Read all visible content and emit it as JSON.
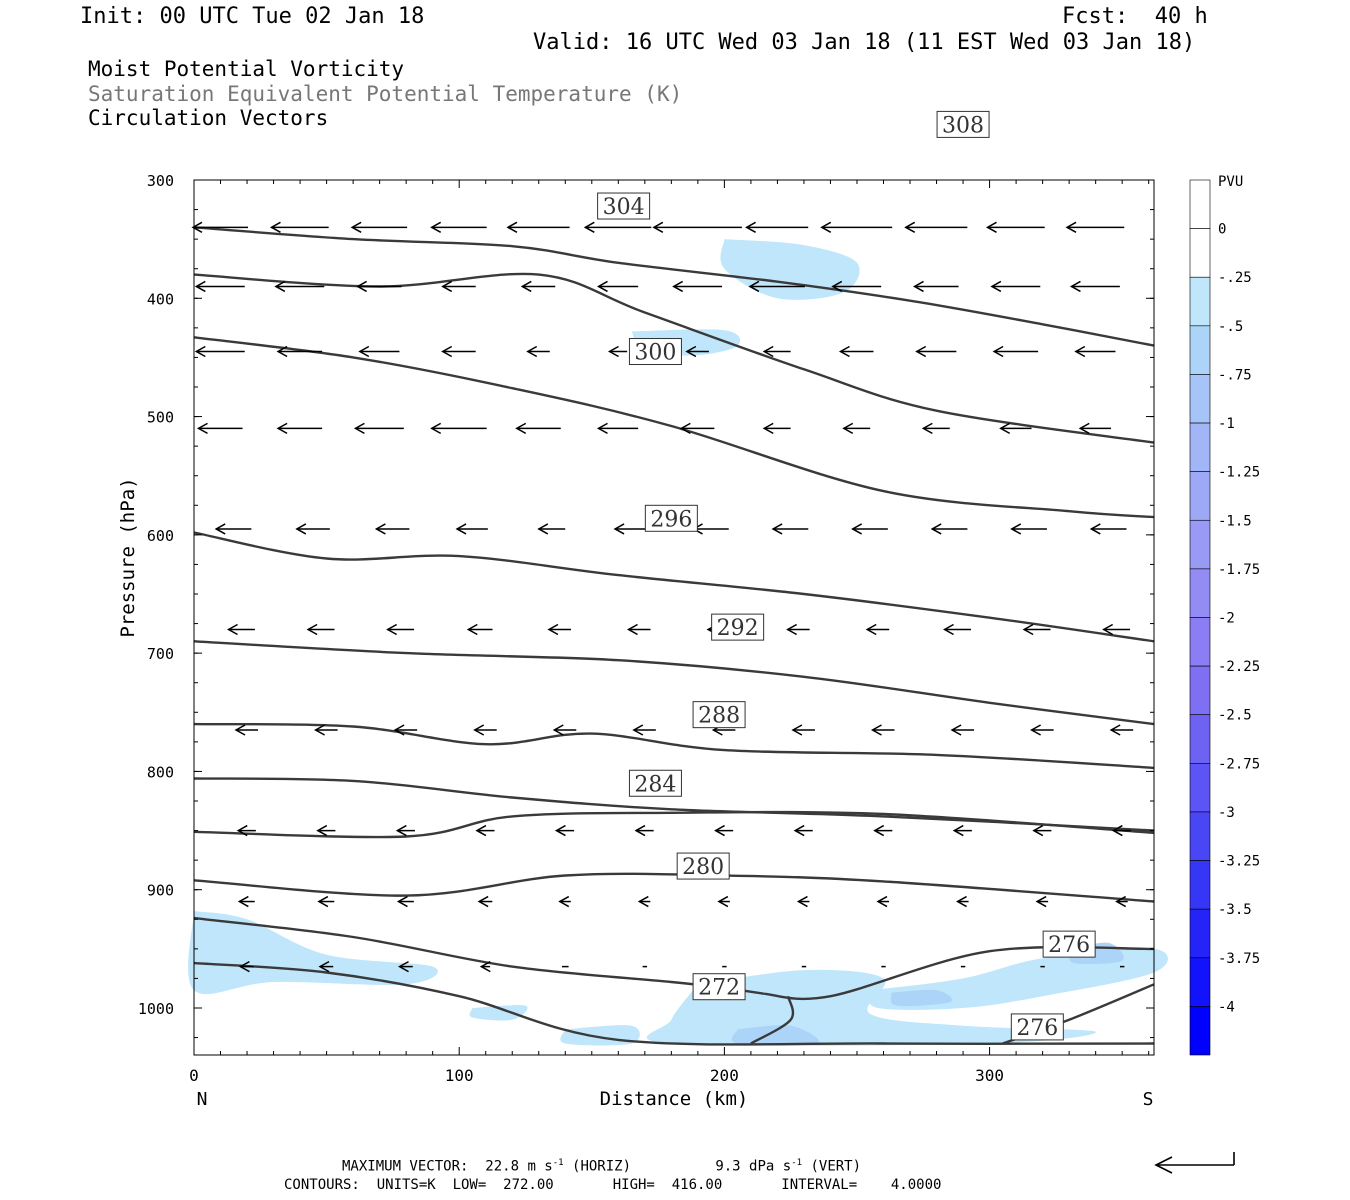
{
  "header": {
    "init": "Init: 00 UTC Tue 02 Jan 18",
    "fcst": "Fcst:  40 h",
    "valid": "Valid: 16 UTC Wed 03 Jan 18 (11 EST Wed 03 Jan 18)"
  },
  "titles": {
    "line1": "Moist Potential Vorticity",
    "line2": "Saturation Equivalent Potential Temperature (K)",
    "line3": "Circulation Vectors"
  },
  "footer": {
    "max_vector_label": "MAXIMUM VECTOR:",
    "max_horiz": "22.8 m s",
    "max_horiz_unit": "(HORIZ)",
    "max_vert": "9.3 dPa s",
    "max_vert_unit": "(VERT)",
    "exp": "-1",
    "contours_line": "CONTOURS:  UNITS=K  LOW=  272.00       HIGH=  416.00       INTERVAL=    4.0000"
  },
  "chart_data": {
    "type": "contour",
    "xlabel": "Distance (km)",
    "ylabel": "Pressure (hPa)",
    "xlim": [
      0,
      362
    ],
    "ylim": [
      1030,
      300
    ],
    "x_ticks": [
      "0",
      "100",
      "200",
      "300"
    ],
    "x_end_labels": {
      "left": "N",
      "right": "S"
    },
    "y_ticks": [
      "300",
      "400",
      "500",
      "600",
      "700",
      "800",
      "900",
      "1000"
    ],
    "colorbar": {
      "unit": "PVU",
      "labels": [
        "0",
        "-.25",
        "-.5",
        "-.75",
        "-1",
        "-1.25",
        "-1.5",
        "-1.75",
        "-2",
        "-2.25",
        "-2.5",
        "-2.75",
        "-3",
        "-3.25",
        "-3.5",
        "-3.75",
        "-4"
      ],
      "colors": [
        "#ffffff",
        "#ffffff",
        "#bfe6fa",
        "#acd4f8",
        "#a7c4f8",
        "#a2b6f7",
        "#9da8f6",
        "#989af5",
        "#928cf4",
        "#8b7ef4",
        "#7f70f3",
        "#6e62f3",
        "#5c54f4",
        "#4946f5",
        "#3636f7",
        "#2424f9",
        "#1212fb",
        "#0000ff"
      ]
    },
    "theta_contours": [
      {
        "label": "272",
        "label_at": [
          198,
          982
        ],
        "points": [
          [
            0,
            962
          ],
          [
            50,
            970
          ],
          [
            100,
            990
          ],
          [
            160,
            1027
          ],
          [
            260,
            1030
          ],
          [
            362,
            1030
          ]
        ]
      },
      {
        "label": "276",
        "label_at": [
          330,
          946
        ],
        "points": [
          [
            0,
            924
          ],
          [
            60,
            940
          ],
          [
            120,
            965
          ],
          [
            180,
            978
          ],
          [
            200,
            983
          ],
          [
            215,
            988
          ]
        ]
      },
      {
        "label": "276",
        "label_at": [
          330,
          946
        ],
        "points": [
          [
            215,
            988
          ],
          [
            240,
            990
          ],
          [
            300,
            952
          ],
          [
            362,
            950
          ]
        ]
      },
      {
        "label": "276",
        "label_at": [
          318,
          1016
        ],
        "points": [
          [
            305,
            1030
          ],
          [
            330,
            1010
          ],
          [
            362,
            980
          ]
        ]
      },
      {
        "label": "",
        "label_at": null,
        "points": [
          [
            210,
            1030
          ],
          [
            225,
            1010
          ],
          [
            224,
            990
          ]
        ]
      },
      {
        "label": "280",
        "label_at": [
          192,
          880
        ],
        "points": [
          [
            0,
            892
          ],
          [
            80,
            905
          ],
          [
            140,
            888
          ],
          [
            200,
            888
          ],
          [
            260,
            893
          ],
          [
            362,
            910
          ]
        ]
      },
      {
        "label": "284",
        "label_at": [
          174,
          810
        ],
        "points": [
          [
            0,
            851
          ],
          [
            80,
            855
          ],
          [
            120,
            838
          ],
          [
            180,
            835
          ],
          [
            260,
            836
          ],
          [
            362,
            852
          ]
        ]
      },
      {
        "label": "",
        "label_at": null,
        "points": [
          [
            0,
            806
          ],
          [
            60,
            808
          ],
          [
            120,
            822
          ],
          [
            180,
            832
          ],
          [
            260,
            838
          ],
          [
            362,
            850
          ]
        ]
      },
      {
        "label": "288",
        "label_at": [
          198,
          752
        ],
        "points": [
          [
            0,
            760
          ],
          [
            60,
            762
          ],
          [
            110,
            777
          ],
          [
            150,
            768
          ],
          [
            200,
            782
          ],
          [
            280,
            786
          ],
          [
            362,
            797
          ]
        ]
      },
      {
        "label": "292",
        "label_at": [
          205,
          678
        ],
        "points": [
          [
            0,
            690
          ],
          [
            80,
            700
          ],
          [
            160,
            706
          ],
          [
            230,
            720
          ],
          [
            300,
            742
          ],
          [
            362,
            760
          ]
        ]
      },
      {
        "label": "296",
        "label_at": [
          180,
          586
        ],
        "points": [
          [
            0,
            598
          ],
          [
            50,
            620
          ],
          [
            100,
            618
          ],
          [
            160,
            634
          ],
          [
            230,
            650
          ],
          [
            300,
            670
          ],
          [
            362,
            690
          ]
        ]
      },
      {
        "label": "300",
        "label_at": [
          174,
          445
        ],
        "points": [
          [
            0,
            433
          ],
          [
            60,
            450
          ],
          [
            120,
            476
          ],
          [
            180,
            508
          ],
          [
            260,
            563
          ],
          [
            330,
            580
          ],
          [
            362,
            585
          ]
        ]
      },
      {
        "label": "304",
        "label_at": [
          162,
          322
        ],
        "points": [
          [
            0,
            380
          ],
          [
            70,
            390
          ],
          [
            130,
            380
          ],
          [
            170,
            412
          ],
          [
            230,
            460
          ],
          [
            280,
            495
          ],
          [
            362,
            522
          ]
        ]
      },
      {
        "label": "308",
        "label_at": [
          290,
          253
        ],
        "points": [
          [
            0,
            340
          ],
          [
            60,
            350
          ],
          [
            120,
            356
          ],
          [
            160,
            370
          ],
          [
            220,
            386
          ],
          [
            270,
            402
          ],
          [
            320,
            422
          ],
          [
            362,
            440
          ]
        ]
      }
    ],
    "pv_regions": [
      {
        "level": "-0.25 to -0.5",
        "points": [
          [
            200,
            350
          ],
          [
            230,
            355
          ],
          [
            250,
            370
          ],
          [
            245,
            395
          ],
          [
            220,
            400
          ],
          [
            200,
            375
          ]
        ]
      },
      {
        "level": "-0.25 to -0.5",
        "points": [
          [
            165,
            428
          ],
          [
            200,
            427
          ],
          [
            205,
            440
          ],
          [
            190,
            448
          ],
          [
            170,
            445
          ]
        ]
      },
      {
        "level": "-0.25 to -0.5",
        "points": [
          [
            0,
            918
          ],
          [
            20,
            925
          ],
          [
            50,
            955
          ],
          [
            90,
            965
          ],
          [
            80,
            980
          ],
          [
            30,
            978
          ],
          [
            0,
            985
          ]
        ]
      },
      {
        "level": "-0.25 to -0.5",
        "points": [
          [
            105,
            1000
          ],
          [
            125,
            998
          ],
          [
            120,
            1010
          ],
          [
            105,
            1008
          ]
        ]
      },
      {
        "level": "-0.25 to -0.5",
        "points": [
          [
            140,
            1018
          ],
          [
            165,
            1015
          ],
          [
            165,
            1030
          ],
          [
            140,
            1030
          ]
        ]
      },
      {
        "level": "-0.25 to -0.5",
        "points": [
          [
            190,
            980
          ],
          [
            230,
            968
          ],
          [
            260,
            975
          ],
          [
            255,
            1005
          ],
          [
            290,
            1015
          ],
          [
            340,
            1020
          ],
          [
            300,
            1030
          ],
          [
            180,
            1030
          ],
          [
            180,
            1010
          ]
        ]
      },
      {
        "level": "-0.25 to -0.5",
        "points": [
          [
            255,
            985
          ],
          [
            290,
            975
          ],
          [
            320,
            958
          ],
          [
            362,
            950
          ],
          [
            362,
            970
          ],
          [
            320,
            990
          ],
          [
            290,
            1000
          ],
          [
            258,
            1000
          ]
        ]
      },
      {
        "level": "-0.5 to -0.75",
        "points": [
          [
            205,
            1018
          ],
          [
            225,
            1015
          ],
          [
            235,
            1030
          ],
          [
            205,
            1030
          ]
        ]
      },
      {
        "level": "-0.5 to -0.75",
        "points": [
          [
            263,
            987
          ],
          [
            280,
            985
          ],
          [
            285,
            995
          ],
          [
            265,
            998
          ]
        ]
      },
      {
        "level": "-0.5 to -0.75",
        "points": [
          [
            330,
            950
          ],
          [
            345,
            945
          ],
          [
            350,
            960
          ],
          [
            332,
            962
          ]
        ]
      }
    ],
    "vector_rows": [
      {
        "p": 340,
        "x": [
          10,
          40,
          70,
          100,
          130,
          160,
          190,
          220,
          250,
          280,
          310,
          340
        ],
        "len": [
          25,
          26,
          25,
          25,
          28,
          30,
          40,
          28,
          32,
          28,
          26,
          26
        ]
      },
      {
        "p": 390,
        "x": [
          10,
          40,
          70,
          100,
          130,
          160,
          190,
          220,
          250,
          280,
          310,
          340
        ],
        "len": [
          22,
          22,
          20,
          15,
          15,
          18,
          22,
          25,
          22,
          20,
          22,
          22
        ]
      },
      {
        "p": 445,
        "x": [
          10,
          40,
          70,
          100,
          130,
          160,
          190,
          220,
          250,
          280,
          310,
          340
        ],
        "len": [
          22,
          20,
          18,
          15,
          10,
          8,
          10,
          12,
          15,
          18,
          20,
          18
        ]
      },
      {
        "p": 510,
        "x": [
          10,
          40,
          70,
          100,
          130,
          160,
          190,
          220,
          250,
          280,
          310,
          340
        ],
        "len": [
          20,
          20,
          22,
          25,
          20,
          18,
          15,
          12,
          12,
          12,
          14,
          14
        ]
      },
      {
        "p": 595,
        "x": [
          15,
          45,
          75,
          105,
          135,
          165,
          195,
          225,
          255,
          285,
          315,
          345
        ],
        "len": [
          16,
          15,
          15,
          14,
          12,
          15,
          16,
          16,
          16,
          16,
          16,
          16
        ]
      },
      {
        "p": 680,
        "x": [
          18,
          48,
          78,
          108,
          138,
          168,
          198,
          228,
          258,
          288,
          318,
          348
        ],
        "len": [
          12,
          12,
          12,
          11,
          10,
          10,
          10,
          10,
          10,
          12,
          12,
          12
        ]
      },
      {
        "p": 765,
        "x": [
          20,
          50,
          80,
          110,
          140,
          170,
          200,
          230,
          260,
          290,
          320,
          350
        ],
        "len": [
          10,
          10,
          10,
          10,
          10,
          10,
          10,
          10,
          10,
          10,
          10,
          10
        ]
      },
      {
        "p": 850,
        "x": [
          20,
          50,
          80,
          110,
          140,
          170,
          200,
          230,
          260,
          290,
          320,
          350
        ],
        "len": [
          8,
          8,
          8,
          8,
          8,
          8,
          8,
          8,
          8,
          8,
          8,
          8
        ]
      },
      {
        "p": 910,
        "x": [
          20,
          50,
          80,
          110,
          140,
          170,
          200,
          230,
          260,
          290,
          320,
          350
        ],
        "len": [
          7,
          7,
          7,
          6,
          5,
          5,
          5,
          5,
          5,
          5,
          5,
          5
        ]
      },
      {
        "p": 965,
        "x": [
          20,
          50,
          80,
          110,
          140,
          170,
          200,
          230,
          260,
          290,
          320,
          350
        ],
        "len": [
          6,
          6,
          6,
          4,
          3,
          2,
          2,
          2,
          2,
          2,
          2,
          2
        ]
      }
    ]
  }
}
